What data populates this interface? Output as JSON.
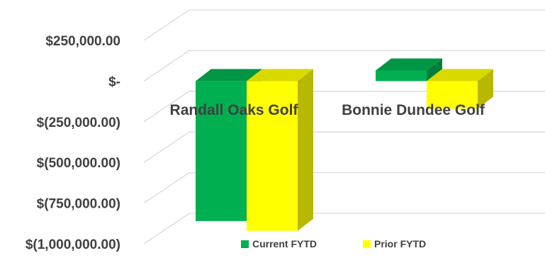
{
  "chart_data": {
    "type": "bar",
    "categories": [
      "Randall Oaks Golf",
      "Bonnie Dundee Golf"
    ],
    "series": [
      {
        "name": "Current FYTD",
        "values": [
          -860000,
          65000
        ],
        "color": "#00b050"
      },
      {
        "name": "Prior FYTD",
        "values": [
          -920000,
          -170000
        ],
        "color": "#ffff00"
      }
    ],
    "ylim": [
      -1000000,
      250000
    ],
    "yticks": [
      250000,
      0,
      -250000,
      -500000,
      -750000,
      -1000000
    ],
    "ytick_labels": [
      "$250,000.00",
      "$-",
      "$(250,000.00)",
      "$(500,000.00)",
      "$(750,000.00)",
      "$(1,000,000.00)"
    ],
    "legend_position": "bottom",
    "grid": true,
    "style": "3d-clustered-column"
  }
}
